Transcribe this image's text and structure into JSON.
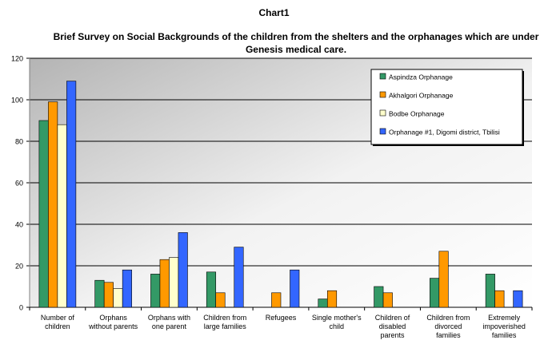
{
  "chart_label": "Chart1",
  "chart_data": {
    "type": "bar",
    "title": "Brief Survey on Social Backgrounds of the children from the shelters and the orphanages which are under Genesis medical care.",
    "categories": [
      [
        "Number of",
        "children"
      ],
      [
        "Orphans",
        "without  parents"
      ],
      [
        "Orphans with",
        "one parent"
      ],
      [
        "Children from",
        "large families"
      ],
      [
        "Refugees"
      ],
      [
        "Single mother's",
        "child"
      ],
      [
        "Children of",
        "disabled",
        "parents"
      ],
      [
        "Children from",
        "divorced",
        "families"
      ],
      [
        "Extremely",
        "impoverished",
        "families"
      ]
    ],
    "series": [
      {
        "name": "Aspindza Orphanage",
        "color": "#339966",
        "values": [
          90,
          13,
          16,
          17,
          0,
          4,
          10,
          14,
          16
        ]
      },
      {
        "name": "Akhalgori Orphanage",
        "color": "#ff9900",
        "values": [
          99,
          12,
          23,
          7,
          7,
          8,
          7,
          27,
          8
        ]
      },
      {
        "name": "Bodbe Orphanage",
        "color": "#ffffcc",
        "values": [
          88,
          9,
          24,
          0,
          0,
          0,
          0,
          0,
          0
        ]
      },
      {
        "name": "Orphanage #1, Digomi district, Tbilisi",
        "color": "#3366ff",
        "values": [
          109,
          18,
          36,
          29,
          18,
          0,
          0,
          0,
          8
        ]
      }
    ],
    "ylim": [
      0,
      120
    ],
    "yticks": [
      0,
      20,
      40,
      60,
      80,
      100,
      120
    ],
    "grid": true,
    "legend_position": "top-right",
    "xlabel": "",
    "ylabel": ""
  }
}
